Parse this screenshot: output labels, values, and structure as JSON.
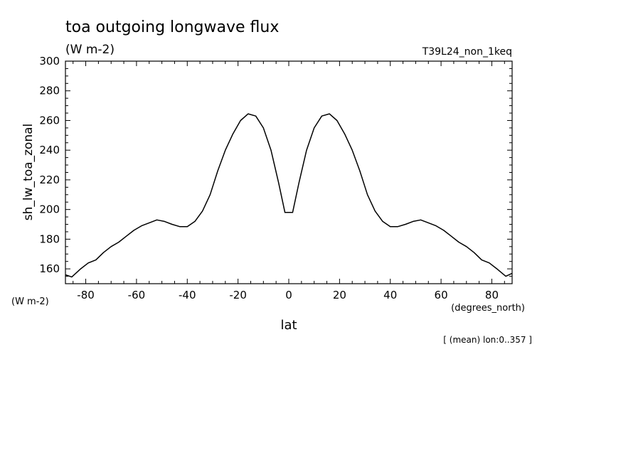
{
  "chart_data": {
    "type": "line",
    "title": "toa outgoing longwave flux",
    "units": "(W m-2)",
    "run_label": "T39L24_non_1keq",
    "ylabel": "sh_lw_toa_zonal",
    "y_units": "(W m-2)",
    "xlabel": "lat",
    "x_units": "(degrees_north)",
    "footnote": "[ (mean) lon:0..357 ]",
    "xlim": [
      -88,
      88
    ],
    "ylim": [
      150,
      300
    ],
    "x_ticks": [
      -80,
      -60,
      -40,
      -20,
      0,
      20,
      40,
      60,
      80
    ],
    "x_tick_labels": [
      "-80",
      "-60",
      "-40",
      "-20",
      "0",
      "20",
      "40",
      "60",
      "80"
    ],
    "y_ticks": [
      160,
      180,
      200,
      220,
      240,
      260,
      280,
      300
    ],
    "y_tick_labels": [
      "160",
      "180",
      "200",
      "220",
      "240",
      "260",
      "280",
      "300"
    ],
    "grid": false,
    "series": [
      {
        "x": [
          -88,
          -85.5,
          -82,
          -79,
          -76,
          -73,
          -70,
          -67,
          -64,
          -61,
          -58,
          -55,
          -52,
          -49,
          -46,
          -43,
          -40,
          -37,
          -34,
          -31,
          -28,
          -25,
          -22,
          -19,
          -16,
          -13,
          -10,
          -7,
          -4,
          -1.5,
          1.5,
          4,
          7,
          10,
          13,
          16,
          19,
          22,
          25,
          28,
          31,
          34,
          37,
          40,
          43,
          46,
          49,
          52,
          55,
          58,
          61,
          64,
          67,
          70,
          73,
          76,
          79,
          82,
          85.5,
          88
        ],
        "y": [
          156,
          154.5,
          160,
          164,
          166,
          171,
          175,
          178,
          182,
          186,
          189,
          191,
          193,
          192,
          190,
          188.5,
          188.5,
          192,
          199,
          210,
          226,
          240,
          251,
          260,
          264.5,
          263,
          255,
          240,
          218,
          198,
          198,
          218,
          240,
          255,
          263,
          264.5,
          260,
          251,
          240,
          226,
          210,
          199,
          192,
          188.5,
          188.5,
          190,
          192,
          193,
          191,
          189,
          186,
          182,
          178,
          175,
          171,
          166,
          164,
          160,
          155,
          157
        ],
        "color": "#000000"
      }
    ]
  }
}
